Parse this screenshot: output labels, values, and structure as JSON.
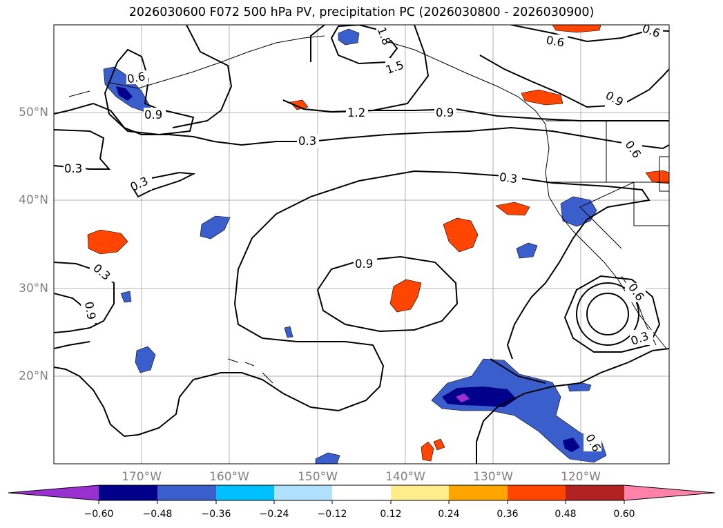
{
  "title": "2026030600 F072 500 hPa PV, precipitation PC (2026030800 - 2026030900)",
  "map": {
    "lon_range": [
      -180,
      -110
    ],
    "lat_range": [
      10,
      60
    ],
    "lon_ticks": [
      "170°W",
      "160°W",
      "150°W",
      "140°W",
      "130°W",
      "120°W"
    ],
    "lat_ticks": [
      "50°N",
      "40°N",
      "30°N",
      "20°N"
    ],
    "grid": true
  },
  "contour_labels": [
    "1.8",
    "1.5",
    "1.2",
    "0.9",
    "0.6",
    "0.6",
    "0.9",
    "0.9",
    "0.6",
    "0.3",
    "0.3",
    "0.3",
    "0.3",
    "0.6",
    "0.9",
    "0.3",
    "0.9",
    "0.6",
    "0.3",
    "0.6",
    "0.3"
  ],
  "colorbar": {
    "ticks": [
      "−0.60",
      "−0.48",
      "−0.36",
      "−0.24",
      "−0.12",
      "0.12",
      "0.24",
      "0.36",
      "0.48",
      "0.60"
    ],
    "colors": [
      "#9b30d0",
      "#00008b",
      "#3a5fcd",
      "#00bfff",
      "#b0e2ff",
      "#ffffff",
      "#ffec8b",
      "#ffa500",
      "#ff4500",
      "#b22222",
      "#ff82ab"
    ]
  }
}
